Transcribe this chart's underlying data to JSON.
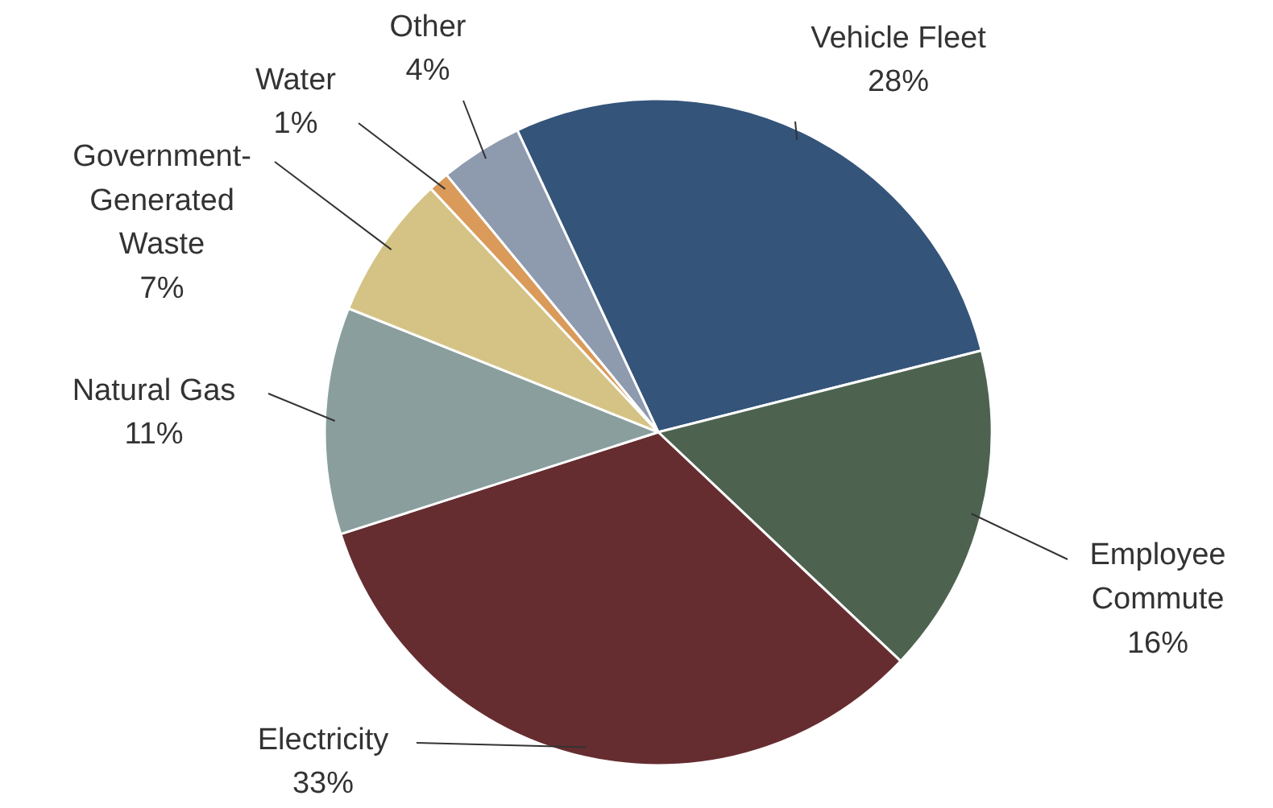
{
  "chart_data": {
    "type": "pie",
    "categories": [
      "Vehicle Fleet",
      "Employee\nCommute",
      "Electricity",
      "Natural Gas",
      "Government-\nGenerated\nWaste",
      "Water",
      "Other"
    ],
    "values": [
      28,
      16,
      33,
      11,
      7,
      1,
      4
    ],
    "value_labels": [
      "28%",
      "16%",
      "33%",
      "11%",
      "7%",
      "1%",
      "4%"
    ],
    "colors": [
      "#34547a",
      "#4d6350",
      "#662d30",
      "#8a9e9e",
      "#d4c384",
      "#d99a5a",
      "#8e9aae"
    ]
  }
}
